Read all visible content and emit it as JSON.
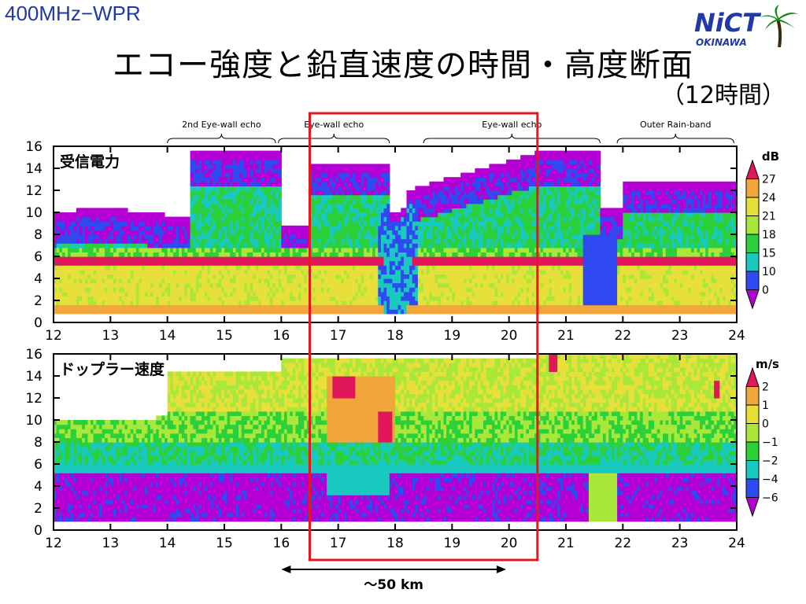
{
  "header": {
    "tag": "400MHz−WPR",
    "title": "エコー強度と鉛直速度の時間・高度断面",
    "subtitle": "（12時間）",
    "logo_text": "NiCT",
    "logo_subtext": "OKINAWA"
  },
  "colors": {
    "title_blue": "#1f3aa6",
    "frame_red": "#e8161d",
    "scale": [
      "#b400d4",
      "#2f4af0",
      "#19c9c0",
      "#2bd03a",
      "#a9e83a",
      "#e8e03a",
      "#f0a63a",
      "#f06a7a",
      "#e0185a"
    ]
  },
  "chart_data": [
    {
      "type": "heatmap",
      "panel_label": "受信電力",
      "unit": "dB",
      "x_ticks": [
        "12",
        "13",
        "14",
        "15",
        "16",
        "17",
        "18",
        "19",
        "20",
        "21",
        "22",
        "23",
        "24"
      ],
      "y_ticks": [
        "0",
        "2",
        "4",
        "6",
        "8",
        "10",
        "12",
        "14",
        "16"
      ],
      "xlim": [
        12,
        24
      ],
      "ylim": [
        0,
        16
      ],
      "colorbar_labels": [
        "27",
        "24",
        "21",
        "18",
        "15",
        "10",
        "0"
      ],
      "colorbar_colors": [
        "#e0185a",
        "#f0a63a",
        "#e8e03a",
        "#a9e83a",
        "#2bd03a",
        "#19c9c0",
        "#2f4af0",
        "#b400d4"
      ]
    },
    {
      "type": "heatmap",
      "panel_label": "ドップラー速度",
      "unit": "m/s",
      "x_ticks": [
        "12",
        "13",
        "14",
        "15",
        "16",
        "17",
        "18",
        "19",
        "20",
        "21",
        "22",
        "23",
        "24"
      ],
      "y_ticks": [
        "0",
        "2",
        "4",
        "6",
        "8",
        "10",
        "12",
        "14",
        "16"
      ],
      "xlim": [
        12,
        24
      ],
      "ylim": [
        0,
        16
      ],
      "colorbar_labels": [
        "2",
        "1",
        "0",
        "−1",
        "−2",
        "−4",
        "−6"
      ],
      "colorbar_colors": [
        "#e0185a",
        "#f0a63a",
        "#e8e03a",
        "#a9e83a",
        "#2bd03a",
        "#19c9c0",
        "#2f4af0",
        "#b400d4"
      ]
    }
  ],
  "annotations": {
    "brackets": [
      {
        "label": "2nd Eye-wall echo",
        "x_start": 14.0,
        "x_end": 15.9
      },
      {
        "label": "Eye-wall echo",
        "x_start": 15.95,
        "x_end": 17.9
      },
      {
        "label": "Eye-wall echo",
        "x_start": 18.5,
        "x_end": 21.6
      },
      {
        "label": "Outer Rain-band",
        "x_start": 21.9,
        "x_end": 23.95
      }
    ],
    "highlight_x": [
      16.5,
      20.5
    ],
    "distance_label": "〜50 km",
    "distance_x": [
      16.0,
      19.95
    ]
  }
}
